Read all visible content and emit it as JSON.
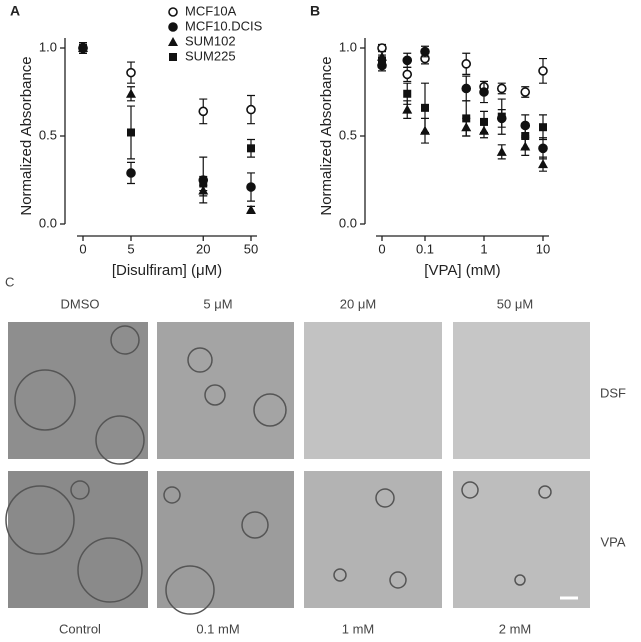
{
  "chart_data": [
    {
      "type": "scatter",
      "panel_label": "A",
      "xlabel": "[Disulfiram] (μM)",
      "ylabel": "Normalized Absorbance",
      "xscale": "log",
      "x": [
        0,
        5,
        20,
        50
      ],
      "xticks": [
        0,
        5,
        20,
        50
      ],
      "ylim": [
        0,
        1
      ],
      "yticks": [
        {
          "value": 0,
          "label": "0.0"
        },
        {
          "value": 0.5,
          "label": "0.5"
        },
        {
          "value": 1,
          "label": "1.0"
        }
      ],
      "legend": "top-right",
      "series": [
        {
          "name": "MCF10A",
          "marker": "open-circle",
          "color": "#111",
          "values": [
            1.0,
            0.86,
            0.64,
            0.65
          ],
          "errors": [
            0.03,
            0.06,
            0.07,
            0.08
          ]
        },
        {
          "name": "MCF10.DCIS",
          "marker": "circle",
          "color": "#111",
          "values": [
            1.0,
            0.29,
            0.25,
            0.21
          ],
          "errors": [
            0.03,
            0.06,
            0.13,
            0.08
          ]
        },
        {
          "name": "SUM102",
          "marker": "triangle",
          "color": "#111",
          "values": [
            1.0,
            0.74,
            0.19,
            0.08
          ],
          "errors": [
            0.03,
            0.04,
            0.03,
            0.02
          ]
        },
        {
          "name": "SUM225",
          "marker": "square",
          "color": "#111",
          "values": [
            1.0,
            0.52,
            0.23,
            0.43
          ],
          "errors": [
            0.03,
            0.15,
            0.04,
            0.05
          ]
        }
      ]
    },
    {
      "type": "scatter",
      "panel_label": "B",
      "xlabel": "[VPA] (mM)",
      "ylabel": "Normalized Absorbance",
      "xscale": "log",
      "x": [
        0,
        0.05,
        0.1,
        0.5,
        1,
        2,
        5,
        10
      ],
      "xticks": [
        0,
        0.1,
        1,
        10
      ],
      "ylim": [
        0,
        1
      ],
      "yticks": [
        {
          "value": 0,
          "label": "0.0"
        },
        {
          "value": 0.5,
          "label": "0.5"
        },
        {
          "value": 1,
          "label": "1.0"
        }
      ],
      "series": [
        {
          "marker": "open-circle",
          "color": "#111",
          "values": [
            1.0,
            0.85,
            0.94,
            0.91,
            0.78,
            0.77,
            0.75,
            0.87
          ],
          "errors": [
            0.02,
            0.04,
            0.03,
            0.06,
            0.03,
            0.03,
            0.03,
            0.07
          ]
        },
        {
          "marker": "circle",
          "color": "#111",
          "values": [
            0.9,
            0.93,
            0.98,
            0.77,
            0.75,
            0.6,
            0.56,
            0.43
          ],
          "errors": [
            0.03,
            0.04,
            0.03,
            0.07,
            0.06,
            0.05,
            0.06,
            0.06
          ]
        },
        {
          "marker": "triangle",
          "color": "#111",
          "values": [
            0.95,
            0.65,
            0.53,
            0.55,
            0.53,
            0.41,
            0.44,
            0.34
          ],
          "errors": [
            0.03,
            0.05,
            0.07,
            0.05,
            0.04,
            0.04,
            0.05,
            0.04
          ]
        },
        {
          "marker": "square",
          "color": "#111",
          "values": [
            0.93,
            0.74,
            0.66,
            0.6,
            0.58,
            0.61,
            0.5,
            0.55
          ],
          "errors": [
            0.03,
            0.06,
            0.14,
            0.1,
            0.06,
            0.1,
            0.07,
            0.07
          ]
        }
      ]
    }
  ],
  "panel_c": {
    "label": "C",
    "columns_top": [
      "DMSO",
      "5 μM",
      "20 μM",
      "50 μM"
    ],
    "columns_bottom": [
      "Control",
      "0.1 mM",
      "1 mM",
      "2 mM"
    ],
    "rows": [
      "DSF",
      "VPA"
    ]
  }
}
